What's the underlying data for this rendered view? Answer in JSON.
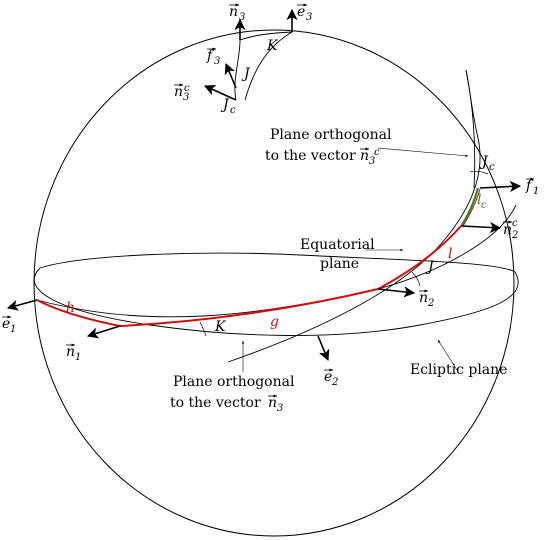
{
  "colors": {
    "outline": "#000000",
    "arc_red": "#d01010",
    "arc_green": "#2a8a2a"
  },
  "labels": {
    "n3_top": "n",
    "n3_top_sub": "3",
    "e3_top": "e",
    "e3_top_sub": "3",
    "K_top": "K",
    "f3": "f",
    "f3_sub": "3",
    "J_top": "J",
    "n3c_top": "n",
    "n3c_top_sub": "3",
    "n3c_top_sup": "c",
    "Jc_top": "J",
    "Jc_top_sub": "c",
    "orth_nc_line1": "Plane orthogonal",
    "orth_nc_line2": "to the vector",
    "orth_nc_vec": "n",
    "orth_nc_vec_sub": "3",
    "orth_nc_vec_sup": "c",
    "Jc_right": "J",
    "Jc_right_sub": "c",
    "lc": "l",
    "lc_sub": "c",
    "f1": "f",
    "f1_sub": "1",
    "n2c": "n",
    "n2c_sub": "2",
    "n2c_sup": "c",
    "equatorial_line1": "Equatorial",
    "equatorial_line2": "plane",
    "l": "l",
    "J_mid": "J",
    "n2": "n",
    "n2_sub": "2",
    "e1": "e",
    "e1_sub": "1",
    "h": "h",
    "g": "g",
    "K_mid": "K",
    "n1": "n",
    "n1_sub": "1",
    "e2": "e",
    "e2_sub": "2",
    "ecliptic": "Ecliptic plane",
    "orth_n3_line1": "Plane orthogonal",
    "orth_n3_line2": "to the vector",
    "orth_n3_vec": "n",
    "orth_n3_vec_sub": "3"
  }
}
